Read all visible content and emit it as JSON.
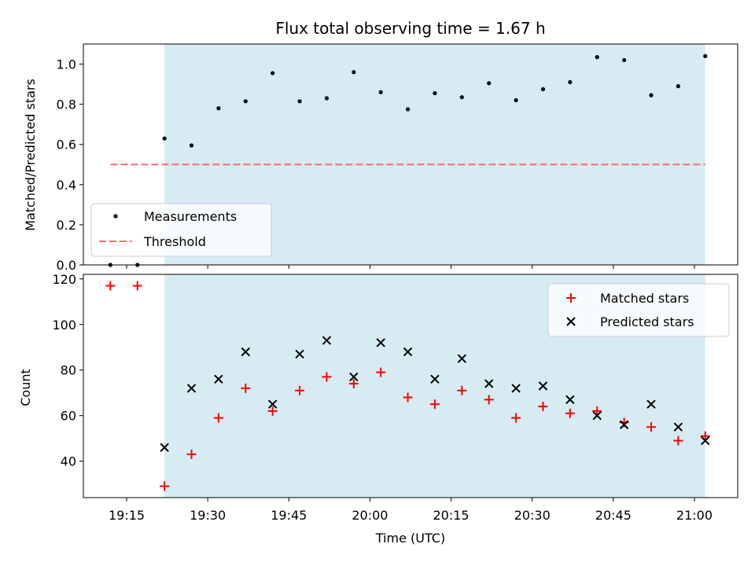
{
  "chart_data": [
    {
      "type": "scatter",
      "title": "Flux total observing time = 1.67 h",
      "ylabel": "Matched/Predicted stars",
      "xlabel": "",
      "ylim": [
        0,
        1.1
      ],
      "yticks": [
        "0.0",
        "0.2",
        "0.4",
        "0.6",
        "0.8",
        "1.0"
      ],
      "grid": false,
      "legend_position": "lower-left",
      "highlight_span": {
        "start": "19:22",
        "end": "21:02",
        "color": "#add8e6"
      },
      "threshold": {
        "name": "Threshold",
        "value": 0.5,
        "start": "19:12",
        "end": "21:02",
        "color": "#ff6b6b"
      },
      "series": [
        {
          "name": "Measurements",
          "color": "#000000",
          "x": [
            "19:12",
            "19:17",
            "19:22",
            "19:27",
            "19:32",
            "19:37",
            "19:42",
            "19:47",
            "19:52",
            "19:57",
            "20:02",
            "20:07",
            "20:12",
            "20:17",
            "20:22",
            "20:27",
            "20:32",
            "20:37",
            "20:42",
            "20:47",
            "20:52",
            "20:57",
            "21:02"
          ],
          "y": [
            0.0,
            0.0,
            0.63,
            0.595,
            0.78,
            0.815,
            0.955,
            0.815,
            0.83,
            0.96,
            0.86,
            0.775,
            0.855,
            0.835,
            0.905,
            0.82,
            0.875,
            0.91,
            1.035,
            1.02,
            0.845,
            0.89,
            1.04
          ]
        }
      ]
    },
    {
      "type": "scatter",
      "ylabel": "Count",
      "xlabel": "Time (UTC)",
      "ylim": [
        24,
        122
      ],
      "yticks": [
        "40",
        "60",
        "80",
        "100",
        "120"
      ],
      "xticks": [
        "19:15",
        "19:30",
        "19:45",
        "20:00",
        "20:15",
        "20:30",
        "20:45",
        "21:00"
      ],
      "xlim": [
        "19:07",
        "21:08"
      ],
      "grid": false,
      "legend_position": "top-right",
      "highlight_span": {
        "start": "19:22",
        "end": "21:02",
        "color": "#add8e6"
      },
      "series": [
        {
          "name": "Matched stars",
          "marker": "plus",
          "color": "#ff0000",
          "x": [
            "19:12",
            "19:17",
            "19:22",
            "19:27",
            "19:32",
            "19:37",
            "19:42",
            "19:47",
            "19:52",
            "19:57",
            "20:02",
            "20:07",
            "20:12",
            "20:17",
            "20:22",
            "20:27",
            "20:32",
            "20:37",
            "20:42",
            "20:47",
            "20:52",
            "20:57",
            "21:02"
          ],
          "y": [
            117,
            117,
            29,
            43,
            59,
            72,
            62,
            71,
            77,
            74,
            79,
            68,
            65,
            71,
            67,
            59,
            64,
            61,
            62,
            57,
            55,
            49,
            51
          ]
        },
        {
          "name": "Predicted stars",
          "marker": "x",
          "color": "#000000",
          "x": [
            "19:22",
            "19:27",
            "19:32",
            "19:37",
            "19:42",
            "19:47",
            "19:52",
            "19:57",
            "20:02",
            "20:07",
            "20:12",
            "20:17",
            "20:22",
            "20:27",
            "20:32",
            "20:37",
            "20:42",
            "20:47",
            "20:52",
            "20:57",
            "21:02"
          ],
          "y": [
            46,
            72,
            76,
            88,
            65,
            87,
            93,
            77,
            92,
            88,
            76,
            85,
            74,
            72,
            73,
            67,
            60,
            56,
            65,
            55,
            49
          ]
        }
      ]
    }
  ]
}
